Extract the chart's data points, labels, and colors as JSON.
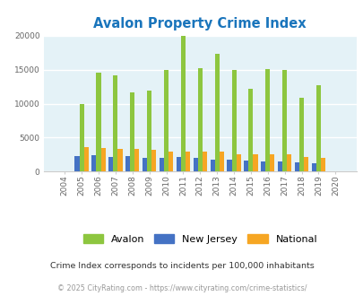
{
  "title": "Avalon Property Crime Index",
  "years": [
    2004,
    2005,
    2006,
    2007,
    2008,
    2009,
    2010,
    2011,
    2012,
    2013,
    2014,
    2015,
    2016,
    2017,
    2018,
    2019,
    2020
  ],
  "avalon": [
    0,
    10000,
    14500,
    14100,
    11700,
    11900,
    15000,
    19900,
    15200,
    17300,
    14900,
    12200,
    15100,
    15000,
    10900,
    12700,
    0
  ],
  "new_jersey": [
    0,
    2300,
    2400,
    2100,
    2300,
    2000,
    2000,
    2100,
    2000,
    1800,
    1700,
    1600,
    1500,
    1500,
    1400,
    1200,
    0
  ],
  "national": [
    0,
    3600,
    3500,
    3300,
    3300,
    3200,
    3000,
    2900,
    2900,
    2900,
    2600,
    2500,
    2500,
    2500,
    2200,
    2000,
    0
  ],
  "avalon_color": "#8dc63f",
  "nj_color": "#4472c4",
  "nat_color": "#f6a623",
  "bg_color": "#e4f2f7",
  "ylim": [
    0,
    20000
  ],
  "yticks": [
    0,
    5000,
    10000,
    15000,
    20000
  ],
  "ytick_labels": [
    "0",
    "5000",
    "10000",
    "15000",
    "20000"
  ],
  "subtitle": "Crime Index corresponds to incidents per 100,000 inhabitants",
  "footer": "© 2025 CityRating.com - https://www.cityrating.com/crime-statistics/",
  "title_color": "#1a75bc",
  "subtitle_color": "#333333",
  "footer_color": "#999999"
}
